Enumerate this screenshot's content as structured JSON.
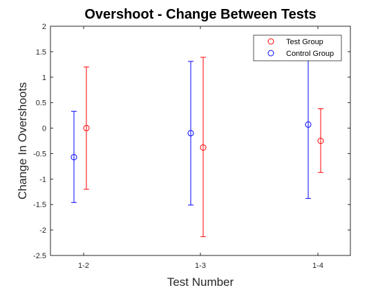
{
  "chart_data": {
    "type": "errorbar",
    "title": "Overshoot - Change Between Tests",
    "xlabel": "Test Number",
    "ylabel": "Change In Overshoots",
    "categories": [
      "1-2",
      "1-3",
      "1-4"
    ],
    "ylim": [
      -2.5,
      2
    ],
    "yticks": [
      -2.5,
      -2,
      -1.5,
      -1,
      -0.5,
      0,
      0.5,
      1,
      1.5,
      2
    ],
    "ytick_labels": [
      "-2.5",
      "-2",
      "-1.5",
      "-1",
      "-0.5",
      "0",
      "0.5",
      "1",
      "1.5",
      "2"
    ],
    "grid": false,
    "legend_position": "top-right",
    "series": [
      {
        "name": "Test Group",
        "color": "#ff0000",
        "marker": "open-circle",
        "values": [
          0.0,
          -0.38,
          -0.25
        ],
        "lower": [
          -1.2,
          -2.13,
          -0.87
        ],
        "upper": [
          1.2,
          1.39,
          0.38
        ]
      },
      {
        "name": "Control Group",
        "color": "#0000ff",
        "marker": "open-circle",
        "values": [
          -0.57,
          -0.1,
          0.07
        ],
        "lower": [
          -1.46,
          -1.51,
          -1.38
        ],
        "upper": [
          0.33,
          1.31,
          1.52
        ]
      }
    ]
  }
}
